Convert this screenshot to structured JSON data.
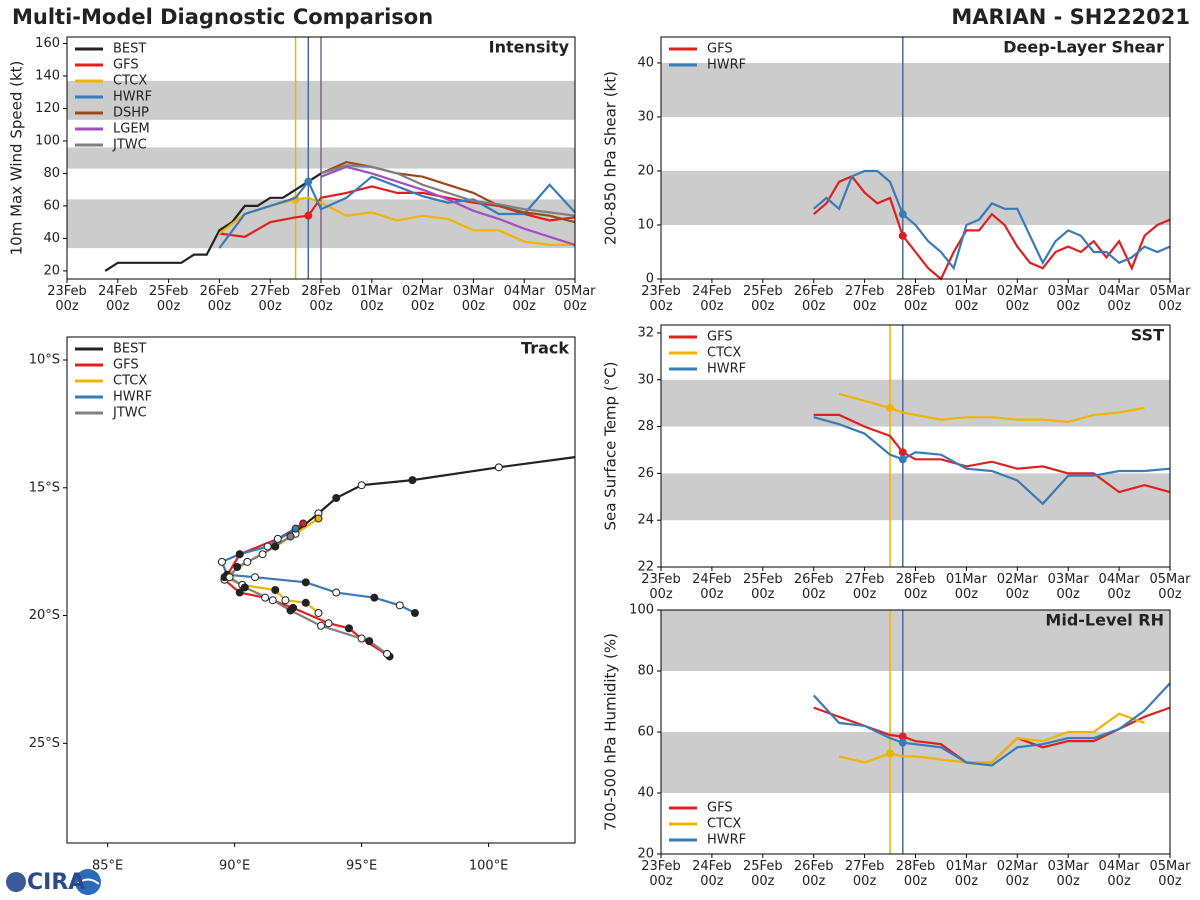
{
  "header": {
    "title": "Multi-Model Diagnostic Comparison",
    "storm": "MARIAN - SH222021"
  },
  "logo": "CIRA",
  "chart_data": [
    {
      "type": "line",
      "title": "Intensity",
      "ylabel": "10m Max Wind Speed (kt)",
      "xlim": [
        "23Feb 00z",
        "05Mar 00z"
      ],
      "xticks": [
        "23Feb\n00z",
        "24Feb\n00z",
        "25Feb\n00z",
        "26Feb\n00z",
        "27Feb\n00z",
        "28Feb\n00z",
        "01Mar\n00z",
        "02Mar\n00z",
        "03Mar\n00z",
        "04Mar\n00z",
        "05Mar\n00z"
      ],
      "ylim": [
        15,
        164
      ],
      "yticks": [
        20,
        40,
        60,
        80,
        100,
        120,
        140,
        160
      ],
      "bands": [
        [
          34,
          64
        ],
        [
          83,
          96
        ],
        [
          113,
          137
        ]
      ],
      "vlines": [
        {
          "x": "27Feb 12z",
          "color": "#f0b400"
        },
        {
          "x": "27Feb 18z",
          "color": "#4a6a9a"
        },
        {
          "x": "28Feb 00z",
          "color": "#7a6a8a"
        }
      ],
      "legend": "upper left",
      "x": [
        "26Feb 00z",
        "26Feb 12z",
        "27Feb 00z",
        "27Feb 12z",
        "27Feb 18z",
        "28Feb 00z",
        "28Feb 12z",
        "01Mar 00z",
        "01Mar 12z",
        "02Mar 00z",
        "02Mar 12z",
        "03Mar 00z",
        "03Mar 12z",
        "04Mar 00z",
        "04Mar 12z",
        "05Mar 00z"
      ],
      "series": [
        {
          "name": "BEST",
          "color": "#222222",
          "x": [
            "23Feb 18z",
            "24Feb 00z",
            "24Feb 06z",
            "24Feb 12z",
            "24Feb 18z",
            "25Feb 00z",
            "25Feb 06z",
            "25Feb 12z",
            "25Feb 18z",
            "26Feb 00z",
            "26Feb 06z",
            "26Feb 12z",
            "26Feb 18z",
            "27Feb 00z",
            "27Feb 06z",
            "27Feb 12z",
            "27Feb 18z",
            "28Feb 00z"
          ],
          "values": [
            20,
            25,
            25,
            25,
            25,
            25,
            25,
            30,
            30,
            45,
            50,
            60,
            60,
            65,
            65,
            70,
            75,
            80
          ]
        },
        {
          "name": "GFS",
          "color": "#e02020",
          "marker": 4,
          "values": [
            43,
            41,
            50,
            53,
            54,
            65,
            68,
            72,
            68,
            68,
            65,
            62,
            60,
            55,
            51,
            53
          ]
        },
        {
          "name": "CTCX",
          "color": "#f0b400",
          "marker": 3,
          "values": [
            43,
            55,
            60,
            64,
            65,
            62,
            54,
            56,
            51,
            54,
            52,
            45,
            45,
            38,
            36,
            36
          ]
        },
        {
          "name": "HWRF",
          "color": "#3a7ab8",
          "marker": 4,
          "values": [
            34,
            55,
            60,
            65,
            75,
            58,
            65,
            78,
            72,
            66,
            62,
            64,
            55,
            55,
            73,
            56
          ]
        },
        {
          "name": "DSHP",
          "color": "#9a4a1a",
          "values": [
            null,
            null,
            null,
            null,
            null,
            80,
            87,
            84,
            80,
            78,
            73,
            68,
            60,
            56,
            54,
            50
          ]
        },
        {
          "name": "LGEM",
          "color": "#a050c0",
          "values": [
            null,
            null,
            null,
            null,
            null,
            78,
            84,
            80,
            75,
            70,
            64,
            57,
            52,
            46,
            41,
            36
          ]
        },
        {
          "name": "JTWC",
          "color": "#808080",
          "values": [
            null,
            null,
            null,
            null,
            null,
            80,
            85,
            84,
            80,
            73,
            68,
            63,
            61,
            58,
            56,
            54
          ]
        }
      ]
    },
    {
      "type": "line",
      "title": "Deep-Layer Shear",
      "ylabel": "200-850 hPa Shear (kt)",
      "xlim": [
        "23Feb 00z",
        "05Mar 00z"
      ],
      "xticks": [
        "23Feb\n00z",
        "24Feb\n00z",
        "25Feb\n00z",
        "26Feb\n00z",
        "27Feb\n00z",
        "28Feb\n00z",
        "01Mar\n00z",
        "02Mar\n00z",
        "03Mar\n00z",
        "04Mar\n00z",
        "05Mar\n00z"
      ],
      "ylim": [
        0,
        44.8
      ],
      "yticks": [
        0,
        10,
        20,
        30,
        40
      ],
      "bands": [
        [
          10,
          20
        ],
        [
          30,
          40
        ]
      ],
      "vlines": [
        {
          "x": "27Feb 18z",
          "color": "#4a6a9a"
        }
      ],
      "legend": "upper left",
      "x": [
        "26Feb 00z",
        "26Feb 06z",
        "26Feb 12z",
        "26Feb 18z",
        "27Feb 00z",
        "27Feb 06z",
        "27Feb 12z",
        "27Feb 18z",
        "28Feb 00z",
        "28Feb 06z",
        "28Feb 12z",
        "28Feb 18z",
        "01Mar 00z",
        "01Mar 06z",
        "01Mar 12z",
        "01Mar 18z",
        "02Mar 00z",
        "02Mar 06z",
        "02Mar 12z",
        "02Mar 18z",
        "03Mar 00z",
        "03Mar 06z",
        "03Mar 12z",
        "03Mar 18z",
        "04Mar 00z",
        "04Mar 06z",
        "04Mar 12z",
        "04Mar 18z",
        "05Mar 00z"
      ],
      "series": [
        {
          "name": "GFS",
          "color": "#e02020",
          "marker": 7,
          "values": [
            12,
            14,
            18,
            19,
            16,
            14,
            15,
            8,
            5,
            2,
            0,
            5,
            9,
            9,
            12,
            10,
            6,
            3,
            2,
            5,
            6,
            5,
            7,
            4,
            7,
            2,
            8,
            10,
            11
          ]
        },
        {
          "name": "HWRF",
          "color": "#3a7ab8",
          "marker": 7,
          "values": [
            13,
            15,
            13,
            19,
            20,
            20,
            18,
            12,
            10,
            7,
            5,
            2,
            10,
            11,
            14,
            13,
            13,
            8,
            3,
            7,
            9,
            8,
            5,
            5,
            3,
            4,
            6,
            5,
            6
          ]
        }
      ]
    },
    {
      "type": "track",
      "title": "Track",
      "xlim": [
        83.4,
        103.4
      ],
      "xticks": [
        {
          "value": 85,
          "label": "85°E"
        },
        {
          "value": 90,
          "label": "90°E"
        },
        {
          "value": 95,
          "label": "95°E"
        },
        {
          "value": 100,
          "label": "100°E"
        }
      ],
      "ylim": [
        -28.9,
        -9.1
      ],
      "yticks": [
        {
          "value": -10,
          "label": "10°S"
        },
        {
          "value": -15,
          "label": "15°S"
        },
        {
          "value": -20,
          "label": "20°S"
        },
        {
          "value": -25,
          "label": "25°S"
        }
      ],
      "legend": "upper left",
      "series": [
        {
          "name": "BEST",
          "color": "#222222",
          "lon": [
            103.4,
            100.4,
            97.0,
            95.0,
            94.0,
            93.3,
            92.2
          ],
          "lat": [
            -13.8,
            -14.2,
            -14.7,
            -14.9,
            -15.4,
            -16.0,
            -16.9
          ]
        },
        {
          "name": "GFS",
          "color": "#e02020",
          "lon": [
            92.7,
            91.7,
            90.2,
            89.6,
            90.2,
            91.2,
            92.3,
            93.7,
            94.5,
            95.0,
            96.1
          ],
          "lat": [
            -16.4,
            -17.0,
            -17.6,
            -18.6,
            -19.1,
            -19.3,
            -19.7,
            -20.3,
            -20.5,
            -20.9,
            -21.6
          ]
        },
        {
          "name": "CTCX",
          "color": "#f0b400",
          "lon": [
            93.3,
            92.4,
            91.6,
            90.5,
            89.6,
            90.3,
            91.6,
            92.0,
            92.8,
            93.3
          ],
          "lat": [
            -16.2,
            -16.8,
            -17.3,
            -17.9,
            -18.5,
            -18.8,
            -19.0,
            -19.4,
            -19.5,
            -19.9
          ]
        },
        {
          "name": "HWRF",
          "color": "#3a7ab8",
          "lon": [
            92.4,
            91.3,
            90.2,
            89.5,
            89.7,
            90.8,
            92.8,
            94.0,
            95.5,
            96.5,
            97.1
          ],
          "lat": [
            -16.6,
            -17.3,
            -17.6,
            -17.9,
            -18.4,
            -18.5,
            -18.7,
            -19.1,
            -19.3,
            -19.6,
            -19.9
          ]
        },
        {
          "name": "JTWC",
          "color": "#808080",
          "lon": [
            92.2,
            91.1,
            90.1,
            89.8,
            90.4,
            91.5,
            92.2,
            93.4,
            95.3,
            96.0
          ],
          "lat": [
            -16.9,
            -17.6,
            -18.1,
            -18.5,
            -18.9,
            -19.4,
            -19.8,
            -20.4,
            -21.0,
            -21.5
          ]
        }
      ]
    },
    {
      "type": "line",
      "title": "SST",
      "ylabel": "Sea Surface Temp (°C)",
      "xlim": [
        "23Feb 00z",
        "05Mar 00z"
      ],
      "xticks": [
        "23Feb\n00z",
        "24Feb\n00z",
        "25Feb\n00z",
        "26Feb\n00z",
        "27Feb\n00z",
        "28Feb\n00z",
        "01Mar\n00z",
        "02Mar\n00z",
        "03Mar\n00z",
        "04Mar\n00z",
        "05Mar\n00z"
      ],
      "ylim": [
        22,
        32.34
      ],
      "yticks": [
        22,
        24,
        26,
        28,
        30,
        32
      ],
      "bands": [
        [
          24,
          26
        ],
        [
          28,
          30
        ]
      ],
      "vlines": [
        {
          "x": "27Feb 12z",
          "color": "#f0b400"
        },
        {
          "x": "27Feb 18z",
          "color": "#4a6a9a"
        }
      ],
      "legend": "upper left",
      "x": [
        "26Feb 00z",
        "26Feb 12z",
        "27Feb 00z",
        "27Feb 12z",
        "27Feb 18z",
        "28Feb 00z",
        "28Feb 12z",
        "01Mar 00z",
        "01Mar 12z",
        "02Mar 00z",
        "02Mar 12z",
        "03Mar 00z",
        "03Mar 12z",
        "04Mar 00z",
        "04Mar 12z",
        "05Mar 00z"
      ],
      "series": [
        {
          "name": "GFS",
          "color": "#e02020",
          "marker": 4,
          "values": [
            28.5,
            28.5,
            28.0,
            27.6,
            26.9,
            26.6,
            26.6,
            26.3,
            26.5,
            26.2,
            26.3,
            26.0,
            26.0,
            25.2,
            25.5,
            25.2
          ]
        },
        {
          "name": "CTCX",
          "color": "#f0b400",
          "marker": 3,
          "values": [
            null,
            29.4,
            29.1,
            28.8,
            28.6,
            28.5,
            28.3,
            28.4,
            28.4,
            28.3,
            28.3,
            28.2,
            28.5,
            28.6,
            28.8,
            null
          ]
        },
        {
          "name": "HWRF",
          "color": "#3a7ab8",
          "marker": 4,
          "values": [
            28.4,
            28.1,
            27.7,
            26.8,
            26.6,
            26.9,
            26.8,
            26.2,
            26.1,
            25.7,
            24.7,
            25.9,
            25.9,
            26.1,
            26.1,
            26.2
          ]
        }
      ]
    },
    {
      "type": "line",
      "title": "Mid-Level RH",
      "ylabel": "700-500 hPa Humidity (%)",
      "xlim": [
        "23Feb 00z",
        "05Mar 00z"
      ],
      "xticks": [
        "23Feb\n00z",
        "24Feb\n00z",
        "25Feb\n00z",
        "26Feb\n00z",
        "27Feb\n00z",
        "28Feb\n00z",
        "01Mar\n00z",
        "02Mar\n00z",
        "03Mar\n00z",
        "04Mar\n00z",
        "05Mar\n00z"
      ],
      "ylim": [
        20,
        100
      ],
      "yticks": [
        20,
        40,
        60,
        80,
        100
      ],
      "bands": [
        [
          40,
          60
        ],
        [
          80,
          100
        ]
      ],
      "vlines": [
        {
          "x": "27Feb 12z",
          "color": "#f0b400"
        },
        {
          "x": "27Feb 18z",
          "color": "#4a6a9a"
        }
      ],
      "legend": "lower left",
      "x": [
        "26Feb 00z",
        "26Feb 12z",
        "27Feb 00z",
        "27Feb 12z",
        "27Feb 18z",
        "28Feb 00z",
        "28Feb 12z",
        "01Mar 00z",
        "01Mar 12z",
        "02Mar 00z",
        "02Mar 12z",
        "03Mar 00z",
        "03Mar 12z",
        "04Mar 00z",
        "04Mar 12z",
        "05Mar 00z"
      ],
      "series": [
        {
          "name": "GFS",
          "color": "#e02020",
          "marker": 4,
          "values": [
            68,
            65,
            62,
            59,
            58.5,
            57,
            56,
            50,
            50,
            58,
            55,
            57,
            57,
            61,
            65,
            68
          ]
        },
        {
          "name": "CTCX",
          "color": "#f0b400",
          "marker": 3,
          "values": [
            null,
            52,
            50,
            53,
            52,
            52,
            51,
            50,
            50,
            58,
            57,
            60,
            60,
            66,
            63,
            null
          ]
        },
        {
          "name": "HWRF",
          "color": "#3a7ab8",
          "marker": 4,
          "values": [
            72,
            63,
            62,
            58,
            56.5,
            56,
            55,
            50,
            49,
            55,
            56,
            58,
            58,
            61,
            67,
            76
          ]
        }
      ]
    }
  ]
}
